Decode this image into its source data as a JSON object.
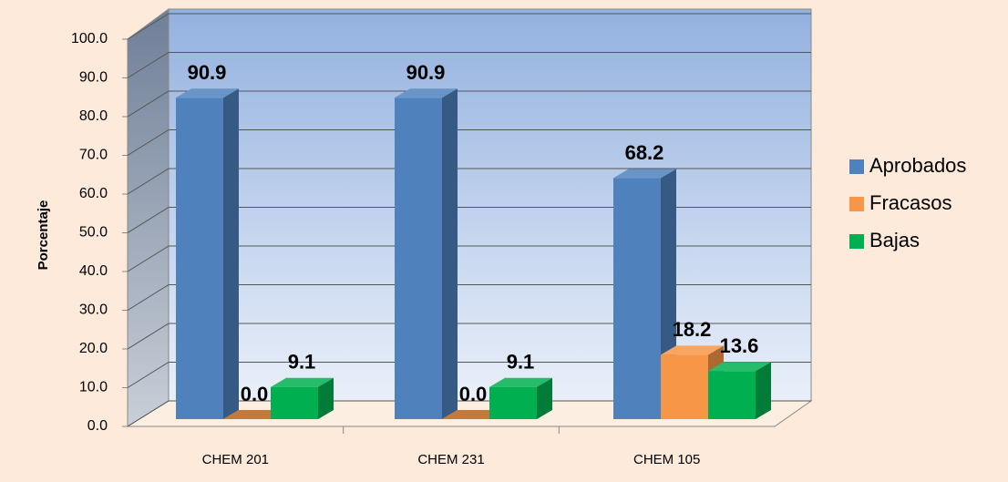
{
  "chart_data": {
    "type": "bar3d",
    "y_label": "Porcentaje",
    "categories": [
      "CHEM 201",
      "CHEM 231",
      "CHEM 105"
    ],
    "series": [
      {
        "name": "Aprobados",
        "color": "#4f81bd",
        "values": [
          90.9,
          90.9,
          68.2
        ],
        "value_labels": [
          "90.9",
          "90.9",
          "68.2"
        ]
      },
      {
        "name": "Fracasos",
        "color": "#f79646",
        "values": [
          0,
          0,
          18.2
        ],
        "value_labels": [
          "0.0",
          "0.0",
          "18.2"
        ]
      },
      {
        "name": "Bajas",
        "color": "#00b050",
        "values": [
          9.1,
          9.1,
          13.6
        ],
        "value_labels": [
          "9.1",
          "9.1",
          "13.6"
        ]
      }
    ],
    "ylim": [
      0,
      100
    ],
    "yticks": [
      {
        "value": 0,
        "label": "0.0"
      },
      {
        "value": 10,
        "label": "10.0"
      },
      {
        "value": 20,
        "label": "20.0"
      },
      {
        "value": 30,
        "label": "30.0"
      },
      {
        "value": 40,
        "label": "40.0"
      },
      {
        "value": 50,
        "label": "50.0"
      },
      {
        "value": 60,
        "label": "60.0"
      },
      {
        "value": 70,
        "label": "70.0"
      },
      {
        "value": 80,
        "label": "80.0"
      },
      {
        "value": 90,
        "label": "90.0"
      },
      {
        "value": 100,
        "label": "100.0"
      }
    ],
    "grid": true,
    "legend": "right"
  }
}
